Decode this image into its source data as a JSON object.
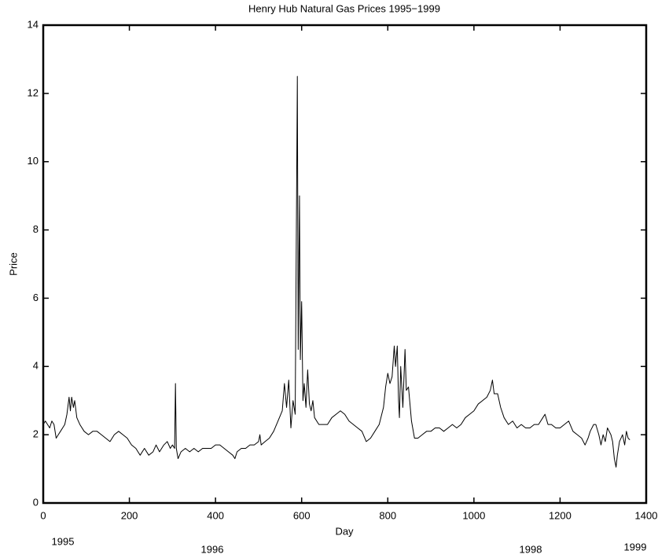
{
  "chart_data": {
    "type": "line",
    "title": "Henry Hub Natural Gas Prices 1995−1999",
    "xlabel": "Day",
    "ylabel": "Price",
    "annotations": [
      "1995",
      "1996",
      "1998",
      "1999"
    ],
    "xlim": [
      0,
      1400
    ],
    "xticks": [
      0,
      200,
      400,
      600,
      800,
      1000,
      1200,
      1400
    ],
    "ylim": [
      0,
      14
    ],
    "yticks": [
      0,
      2,
      4,
      6,
      8,
      10,
      12,
      14
    ],
    "grid": false,
    "color": "#000000",
    "x": [
      0,
      5,
      10,
      15,
      20,
      25,
      30,
      35,
      40,
      45,
      50,
      55,
      60,
      63,
      66,
      70,
      73,
      78,
      85,
      95,
      105,
      115,
      125,
      135,
      145,
      155,
      165,
      175,
      185,
      195,
      205,
      215,
      220,
      225,
      235,
      245,
      255,
      262,
      270,
      280,
      288,
      295,
      300,
      305,
      307,
      309,
      313,
      320,
      330,
      340,
      350,
      360,
      370,
      380,
      390,
      400,
      410,
      420,
      430,
      440,
      445,
      450,
      460,
      470,
      480,
      490,
      500,
      503,
      506,
      515,
      525,
      535,
      545,
      555,
      560,
      565,
      570,
      575,
      580,
      585,
      590,
      592,
      595,
      597,
      600,
      603,
      606,
      610,
      614,
      618,
      622,
      626,
      630,
      640,
      650,
      660,
      670,
      680,
      690,
      700,
      710,
      720,
      730,
      740,
      750,
      760,
      770,
      780,
      790,
      795,
      800,
      805,
      810,
      815,
      818,
      822,
      825,
      827,
      830,
      835,
      840,
      843,
      848,
      855,
      862,
      870,
      880,
      890,
      900,
      910,
      920,
      930,
      940,
      950,
      960,
      970,
      980,
      990,
      1000,
      1010,
      1020,
      1030,
      1038,
      1043,
      1047,
      1055,
      1062,
      1070,
      1080,
      1090,
      1100,
      1110,
      1120,
      1130,
      1140,
      1150,
      1160,
      1165,
      1172,
      1180,
      1190,
      1200,
      1210,
      1220,
      1230,
      1240,
      1250,
      1258,
      1265,
      1270,
      1278,
      1283,
      1290,
      1295,
      1300,
      1305,
      1310,
      1318,
      1322,
      1326,
      1330,
      1333,
      1338,
      1345,
      1350,
      1354,
      1358,
      1362
    ],
    "values": [
      2.3,
      2.4,
      2.3,
      2.2,
      2.4,
      2.3,
      1.9,
      2.0,
      2.1,
      2.2,
      2.3,
      2.6,
      3.1,
      2.7,
      3.1,
      2.8,
      3.0,
      2.5,
      2.3,
      2.1,
      2.0,
      2.1,
      2.1,
      2.0,
      1.9,
      1.8,
      2.0,
      2.1,
      2.0,
      1.9,
      1.7,
      1.6,
      1.5,
      1.4,
      1.6,
      1.4,
      1.5,
      1.7,
      1.5,
      1.7,
      1.8,
      1.6,
      1.7,
      1.6,
      3.5,
      1.6,
      1.3,
      1.5,
      1.6,
      1.5,
      1.6,
      1.5,
      1.6,
      1.6,
      1.6,
      1.7,
      1.7,
      1.6,
      1.5,
      1.4,
      1.3,
      1.5,
      1.6,
      1.6,
      1.7,
      1.7,
      1.8,
      2.0,
      1.7,
      1.8,
      1.9,
      2.1,
      2.4,
      2.7,
      3.5,
      2.8,
      3.6,
      2.2,
      3.0,
      2.6,
      12.5,
      4.5,
      9.0,
      4.2,
      5.9,
      3.0,
      3.5,
      2.8,
      3.9,
      2.9,
      2.7,
      3.0,
      2.5,
      2.3,
      2.3,
      2.3,
      2.5,
      2.6,
      2.7,
      2.6,
      2.4,
      2.3,
      2.2,
      2.1,
      1.8,
      1.9,
      2.1,
      2.3,
      2.8,
      3.4,
      3.8,
      3.5,
      3.7,
      4.6,
      4.0,
      4.6,
      3.0,
      2.5,
      4.0,
      2.8,
      4.5,
      3.3,
      3.4,
      2.4,
      1.9,
      1.9,
      2.0,
      2.1,
      2.1,
      2.2,
      2.2,
      2.1,
      2.2,
      2.3,
      2.2,
      2.3,
      2.5,
      2.6,
      2.7,
      2.9,
      3.0,
      3.1,
      3.3,
      3.6,
      3.2,
      3.2,
      2.8,
      2.5,
      2.3,
      2.4,
      2.2,
      2.3,
      2.2,
      2.2,
      2.3,
      2.3,
      2.5,
      2.6,
      2.3,
      2.3,
      2.2,
      2.2,
      2.3,
      2.4,
      2.1,
      2.0,
      1.9,
      1.7,
      1.9,
      2.1,
      2.3,
      2.3,
      2.0,
      1.7,
      2.0,
      1.8,
      2.2,
      2.0,
      1.8,
      1.3,
      1.05,
      1.4,
      1.8,
      2.0,
      1.7,
      2.1,
      1.9,
      1.85
    ]
  }
}
